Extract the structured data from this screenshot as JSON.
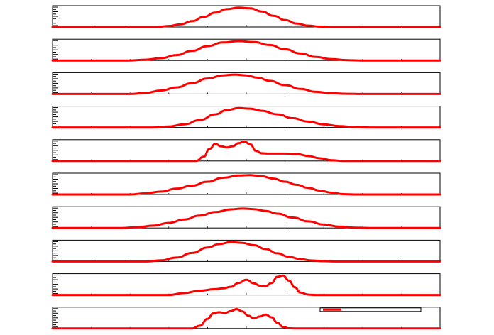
{
  "chart_data": [
    {
      "type": "line",
      "title": "",
      "xlabel": "",
      "ylabel": "",
      "xlim": [
        0,
        100
      ],
      "ylim": [
        0,
        1.1
      ],
      "grid": false,
      "series": [
        {
          "color": "#ff0000",
          "x": [
            0,
            27,
            30,
            33,
            36,
            39,
            42,
            45,
            48,
            51,
            54,
            57,
            60,
            63,
            66,
            69,
            72,
            75,
            100
          ],
          "values": [
            0,
            0,
            0.05,
            0.14,
            0.3,
            0.52,
            0.74,
            0.92,
            1.0,
            0.96,
            0.8,
            0.58,
            0.36,
            0.18,
            0.07,
            0.02,
            0,
            0,
            0
          ]
        }
      ]
    },
    {
      "type": "line",
      "title": "",
      "xlabel": "",
      "ylabel": "",
      "xlim": [
        0,
        100
      ],
      "ylim": [
        0,
        1.1
      ],
      "grid": false,
      "series": [
        {
          "color": "#ff0000",
          "x": [
            0,
            20,
            24,
            28,
            32,
            36,
            40,
            44,
            48,
            52,
            56,
            60,
            64,
            68,
            72,
            76,
            80,
            100
          ],
          "values": [
            0,
            0,
            0.04,
            0.12,
            0.28,
            0.5,
            0.74,
            0.93,
            1.0,
            0.95,
            0.8,
            0.58,
            0.36,
            0.18,
            0.07,
            0.02,
            0,
            0
          ]
        }
      ]
    },
    {
      "type": "line",
      "title": "",
      "xlabel": "",
      "ylabel": "",
      "xlim": [
        0,
        100
      ],
      "ylim": [
        0,
        1.1
      ],
      "grid": false,
      "series": [
        {
          "color": "#ff0000",
          "x": [
            0,
            20,
            24,
            28,
            32,
            36,
            40,
            44,
            47,
            50,
            53,
            56,
            60,
            64,
            68,
            72,
            76,
            80,
            100
          ],
          "values": [
            0,
            0,
            0.06,
            0.18,
            0.34,
            0.56,
            0.8,
            0.96,
            1.0,
            0.96,
            0.84,
            0.68,
            0.46,
            0.26,
            0.11,
            0.04,
            0.01,
            0,
            0
          ]
        }
      ]
    },
    {
      "type": "line",
      "title": "",
      "xlabel": "",
      "ylabel": "",
      "xlim": [
        0,
        100
      ],
      "ylim": [
        0,
        1.1
      ],
      "grid": false,
      "series": [
        {
          "color": "#ff0000",
          "x": [
            0,
            26,
            30,
            34,
            38,
            42,
            45,
            48,
            51,
            54,
            58,
            62,
            66,
            70,
            74,
            78,
            82,
            86,
            100
          ],
          "values": [
            0,
            0,
            0.05,
            0.16,
            0.38,
            0.68,
            0.9,
            1.0,
            0.97,
            0.86,
            0.68,
            0.48,
            0.3,
            0.16,
            0.07,
            0.02,
            0,
            0,
            0
          ]
        }
      ]
    },
    {
      "type": "line",
      "title": "",
      "xlabel": "",
      "ylabel": "",
      "xlim": [
        0,
        100
      ],
      "ylim": [
        0,
        1.1
      ],
      "grid": false,
      "series": [
        {
          "color": "#ff0000",
          "x": [
            0,
            37,
            39,
            40.5,
            42,
            43.5,
            45,
            46.5,
            48,
            49.5,
            51,
            52.5,
            54,
            55.5,
            57,
            60,
            63,
            66,
            69,
            72,
            75,
            100
          ],
          "values": [
            0,
            0,
            0.22,
            0.62,
            0.88,
            0.76,
            0.7,
            0.76,
            0.92,
            1.0,
            0.86,
            0.52,
            0.4,
            0.38,
            0.38,
            0.38,
            0.36,
            0.26,
            0.14,
            0.04,
            0,
            0
          ]
        }
      ]
    },
    {
      "type": "line",
      "title": "",
      "xlabel": "",
      "ylabel": "",
      "xlim": [
        0,
        100
      ],
      "ylim": [
        0,
        1.1
      ],
      "grid": false,
      "series": [
        {
          "color": "#ff0000",
          "x": [
            0,
            20,
            24,
            28,
            32,
            36,
            40,
            44,
            48,
            51,
            54,
            57,
            60,
            63,
            66,
            69,
            72,
            75,
            78,
            100
          ],
          "values": [
            0,
            0,
            0.06,
            0.15,
            0.3,
            0.46,
            0.66,
            0.86,
            0.98,
            1.0,
            0.94,
            0.82,
            0.66,
            0.5,
            0.34,
            0.2,
            0.09,
            0.02,
            0,
            0
          ]
        }
      ]
    },
    {
      "type": "line",
      "title": "",
      "xlabel": "",
      "ylabel": "",
      "xlim": [
        0,
        100
      ],
      "ylim": [
        0,
        1.1
      ],
      "grid": false,
      "series": [
        {
          "color": "#ff0000",
          "x": [
            0,
            18,
            22,
            26,
            30,
            34,
            38,
            42,
            46,
            49,
            52,
            55,
            58,
            62,
            66,
            70,
            74,
            78,
            82,
            100
          ],
          "values": [
            0,
            0,
            0.04,
            0.12,
            0.26,
            0.44,
            0.64,
            0.82,
            0.96,
            1.0,
            0.97,
            0.88,
            0.74,
            0.54,
            0.34,
            0.18,
            0.07,
            0.02,
            0,
            0
          ]
        }
      ]
    },
    {
      "type": "line",
      "title": "",
      "xlabel": "",
      "ylabel": "",
      "xlim": [
        0,
        100
      ],
      "ylim": [
        0,
        1.1
      ],
      "grid": false,
      "series": [
        {
          "color": "#ff0000",
          "x": [
            0,
            24,
            28,
            32,
            36,
            40,
            43,
            46,
            49,
            52,
            55,
            58,
            61,
            64,
            67,
            70,
            73,
            76,
            100
          ],
          "values": [
            0,
            0,
            0.06,
            0.2,
            0.44,
            0.72,
            0.9,
            1.0,
            0.96,
            0.84,
            0.64,
            0.42,
            0.24,
            0.12,
            0.05,
            0.02,
            0,
            0,
            0
          ]
        }
      ]
    },
    {
      "type": "line",
      "title": "",
      "xlabel": "",
      "ylabel": "",
      "xlim": [
        0,
        100
      ],
      "ylim": [
        0,
        1.1
      ],
      "grid": false,
      "series": [
        {
          "color": "#ff0000",
          "x": [
            0,
            30,
            34,
            38,
            42,
            44,
            46,
            48,
            50,
            52,
            53.5,
            55,
            56.5,
            58,
            59.5,
            61,
            62.5,
            64,
            66,
            68,
            100
          ],
          "values": [
            0,
            0,
            0.1,
            0.22,
            0.3,
            0.34,
            0.42,
            0.62,
            0.78,
            0.6,
            0.48,
            0.46,
            0.62,
            0.94,
            1.0,
            0.74,
            0.4,
            0.12,
            0.02,
            0,
            0
          ]
        }
      ]
    },
    {
      "type": "line",
      "title": "",
      "xlabel": "",
      "ylabel": "",
      "xlim": [
        0,
        100
      ],
      "ylim": [
        0,
        1.1
      ],
      "grid": false,
      "legend_position": "top-right",
      "series": [
        {
          "color": "#ff0000",
          "x": [
            0,
            36,
            38,
            40,
            41.5,
            43,
            44.5,
            46,
            47.5,
            49,
            50.5,
            52,
            53.5,
            55,
            56.5,
            58,
            59.5,
            61,
            63,
            100
          ],
          "values": [
            0,
            0,
            0.14,
            0.5,
            0.78,
            0.84,
            0.8,
            0.9,
            1.0,
            0.88,
            0.66,
            0.52,
            0.62,
            0.72,
            0.58,
            0.3,
            0.08,
            0.01,
            0,
            0
          ]
        }
      ]
    }
  ]
}
